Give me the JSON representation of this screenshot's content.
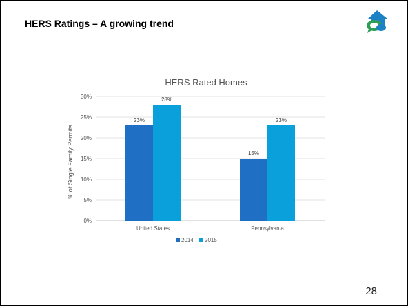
{
  "slide": {
    "title": "HERS Ratings – A growing trend",
    "page_number": "28",
    "logo_icon": "house-with-speech-bubbles-icon"
  },
  "colors": {
    "series_2014": "#1f6fc5",
    "series_2015": "#0aa0dc",
    "logo_green": "#2e9e57",
    "logo_blue": "#1d82c4"
  },
  "chart_data": {
    "type": "bar",
    "title": "HERS Rated Homes",
    "xlabel": "",
    "ylabel": "% of Single Family Permits",
    "categories": [
      "United States",
      "Pennsylvania"
    ],
    "series": [
      {
        "name": "2014",
        "values": [
          23,
          15
        ],
        "labels": [
          "23%",
          "15%"
        ]
      },
      {
        "name": "2015",
        "values": [
          28,
          23
        ],
        "labels": [
          "28%",
          "23%"
        ]
      }
    ],
    "ylim": [
      0,
      30
    ],
    "yticks": [
      0,
      5,
      10,
      15,
      20,
      25,
      30
    ],
    "ytick_labels": [
      "0%",
      "5%",
      "10%",
      "15%",
      "20%",
      "25%",
      "30%"
    ],
    "grid": true,
    "legend_position": "bottom"
  }
}
